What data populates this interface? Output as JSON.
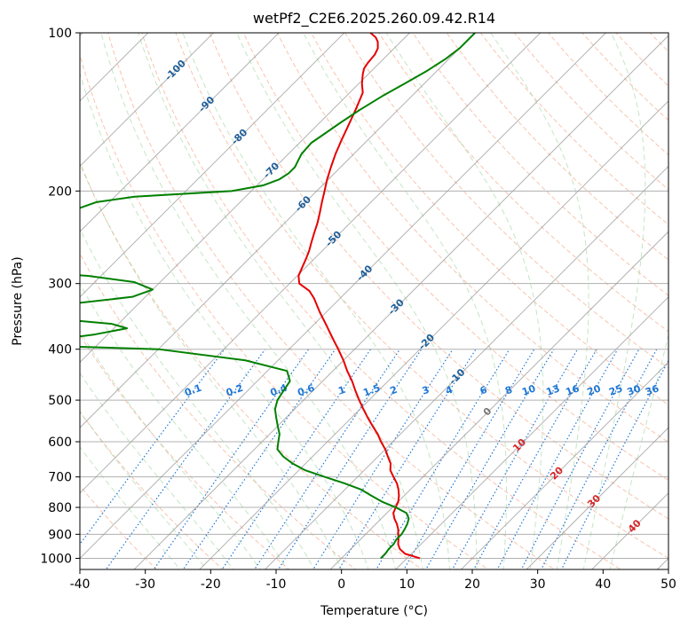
{
  "chart_data": {
    "type": "line",
    "chart_kind": "skew-t log-p diagram",
    "title": "wetPf2_C2E6.2025.260.09.42.R14",
    "xlabel": "Temperature (°C)",
    "ylabel": "Pressure (hPa)",
    "xlim": [
      -40,
      50
    ],
    "ylim": [
      1050,
      100
    ],
    "y_scale": "log",
    "x_ticks": [
      -40,
      -30,
      -20,
      -10,
      0,
      10,
      20,
      30,
      40,
      50
    ],
    "y_ticks": [
      100,
      200,
      300,
      400,
      500,
      600,
      700,
      800,
      900,
      1000
    ],
    "grid": true,
    "colors": {
      "temperature": "#e60000",
      "dewpoint": "#008000",
      "isotherm": "#999999",
      "dry_adiabat": "#f4a582",
      "moist_adiabat": "#9fd49f",
      "mixing_ratio": "#1f77d4",
      "isotherm_label_cold": "#1f5f99",
      "isotherm_label_warm": "#d62728",
      "isotherm_label_zero": "#777777"
    },
    "isotherm_labels": {
      "values": [
        -100,
        -90,
        -80,
        -70,
        -60,
        -50,
        -40,
        -30,
        -20,
        -10,
        0,
        10,
        20,
        30,
        40
      ],
      "text": [
        "-100",
        "-90",
        "-80",
        "-70",
        "-60",
        "-50",
        "-40",
        "-30",
        "-20",
        "-10",
        "0",
        "10",
        "20",
        "30",
        "40"
      ],
      "pressures": [
        118,
        137,
        158,
        183,
        212,
        247,
        287,
        333,
        388,
        452,
        527,
        610,
        690,
        780,
        870
      ]
    },
    "mixing_ratio_labels": {
      "values": [
        0.1,
        0.2,
        0.4,
        0.6,
        1,
        1.5,
        2,
        3,
        4,
        6,
        8,
        10,
        13,
        16,
        20,
        25,
        30,
        36
      ],
      "text": [
        "0.1",
        "0.2",
        "0.4",
        "0.6",
        "1",
        "1.5",
        "2",
        "3",
        "4",
        "6",
        "8",
        "10",
        "13",
        "16",
        "20",
        "25",
        "30",
        "36"
      ],
      "pressure": 480
    },
    "series": [
      {
        "name": "",
        "kind": "temperature",
        "points": [
          [
            1000,
            12.0
          ],
          [
            980,
            9.0
          ],
          [
            960,
            7.5
          ],
          [
            940,
            6.5
          ],
          [
            920,
            5.8
          ],
          [
            900,
            5.0
          ],
          [
            880,
            4.2
          ],
          [
            860,
            3.2
          ],
          [
            840,
            2.0
          ],
          [
            820,
            1.0
          ],
          [
            800,
            0.5
          ],
          [
            780,
            0.0
          ],
          [
            760,
            -0.8
          ],
          [
            740,
            -1.8
          ],
          [
            720,
            -3.0
          ],
          [
            700,
            -4.5
          ],
          [
            680,
            -6.0
          ],
          [
            660,
            -7.0
          ],
          [
            640,
            -8.5
          ],
          [
            620,
            -10.0
          ],
          [
            600,
            -11.8
          ],
          [
            580,
            -13.5
          ],
          [
            560,
            -15.5
          ],
          [
            540,
            -17.5
          ],
          [
            520,
            -19.5
          ],
          [
            500,
            -21.5
          ],
          [
            480,
            -23.5
          ],
          [
            460,
            -25.5
          ],
          [
            440,
            -27.8
          ],
          [
            420,
            -30.0
          ],
          [
            400,
            -32.5
          ],
          [
            380,
            -35.2
          ],
          [
            360,
            -38.0
          ],
          [
            340,
            -41.0
          ],
          [
            320,
            -44.0
          ],
          [
            310,
            -45.8
          ],
          [
            300,
            -48.5
          ],
          [
            290,
            -49.8
          ],
          [
            280,
            -50.5
          ],
          [
            270,
            -51.2
          ],
          [
            260,
            -52.0
          ],
          [
            250,
            -53.0
          ],
          [
            240,
            -54.0
          ],
          [
            230,
            -55.0
          ],
          [
            220,
            -56.2
          ],
          [
            210,
            -57.5
          ],
          [
            200,
            -58.8
          ],
          [
            190,
            -60.2
          ],
          [
            180,
            -61.5
          ],
          [
            170,
            -62.8
          ],
          [
            160,
            -64.0
          ],
          [
            150,
            -65.2
          ],
          [
            140,
            -66.5
          ],
          [
            130,
            -68.0
          ],
          [
            125,
            -69.5
          ],
          [
            120,
            -70.8
          ],
          [
            117,
            -71.5
          ],
          [
            114,
            -71.8
          ],
          [
            110,
            -72.0
          ],
          [
            107,
            -72.5
          ],
          [
            104,
            -73.5
          ],
          [
            102,
            -74.5
          ],
          [
            100,
            -76.0
          ]
        ]
      },
      {
        "name": "",
        "kind": "dewpoint",
        "points": [
          [
            1000,
            6.0
          ],
          [
            980,
            6.0
          ],
          [
            960,
            5.8
          ],
          [
            940,
            5.8
          ],
          [
            920,
            5.5
          ],
          [
            900,
            5.5
          ],
          [
            880,
            5.2
          ],
          [
            860,
            4.8
          ],
          [
            840,
            4.2
          ],
          [
            820,
            3.0
          ],
          [
            800,
            0.5
          ],
          [
            780,
            -2.5
          ],
          [
            760,
            -5.0
          ],
          [
            740,
            -7.5
          ],
          [
            720,
            -11.0
          ],
          [
            700,
            -15.0
          ],
          [
            680,
            -19.0
          ],
          [
            660,
            -22.0
          ],
          [
            640,
            -24.5
          ],
          [
            620,
            -26.5
          ],
          [
            600,
            -27.5
          ],
          [
            580,
            -28.5
          ],
          [
            560,
            -30.0
          ],
          [
            540,
            -31.5
          ],
          [
            520,
            -33.0
          ],
          [
            500,
            -34.0
          ],
          [
            480,
            -34.5
          ],
          [
            460,
            -35.0
          ],
          [
            440,
            -37.0
          ],
          [
            420,
            -45.0
          ],
          [
            400,
            -60.0
          ],
          [
            395,
            -75.0
          ],
          [
            390,
            -80.0
          ],
          [
            385,
            -78.0
          ],
          [
            375,
            -72.0
          ],
          [
            365,
            -68.0
          ],
          [
            358,
            -71.0
          ],
          [
            352,
            -78.0
          ],
          [
            345,
            -86.0
          ],
          [
            340,
            -90.0
          ],
          [
            330,
            -82.0
          ],
          [
            318,
            -72.0
          ],
          [
            308,
            -70.0
          ],
          [
            298,
            -74.0
          ],
          [
            290,
            -82.0
          ],
          [
            285,
            -92.0
          ],
          [
            270,
            -99.0
          ],
          [
            240,
            -99.5
          ],
          [
            230,
            -98.0
          ],
          [
            220,
            -95.0
          ],
          [
            210,
            -92.0
          ],
          [
            205,
            -87.0
          ],
          [
            200,
            -73.0
          ],
          [
            195,
            -69.0
          ],
          [
            190,
            -67.5
          ],
          [
            185,
            -67.0
          ],
          [
            180,
            -67.0
          ],
          [
            175,
            -67.5
          ],
          [
            170,
            -68.0
          ],
          [
            162,
            -68.2
          ],
          [
            155,
            -67.5
          ],
          [
            148,
            -66.8
          ],
          [
            140,
            -65.8
          ],
          [
            132,
            -64.5
          ],
          [
            125,
            -63.0
          ],
          [
            118,
            -61.5
          ],
          [
            112,
            -60.5
          ],
          [
            107,
            -60.0
          ],
          [
            103,
            -60.0
          ],
          [
            100,
            -60.0
          ]
        ]
      }
    ]
  }
}
